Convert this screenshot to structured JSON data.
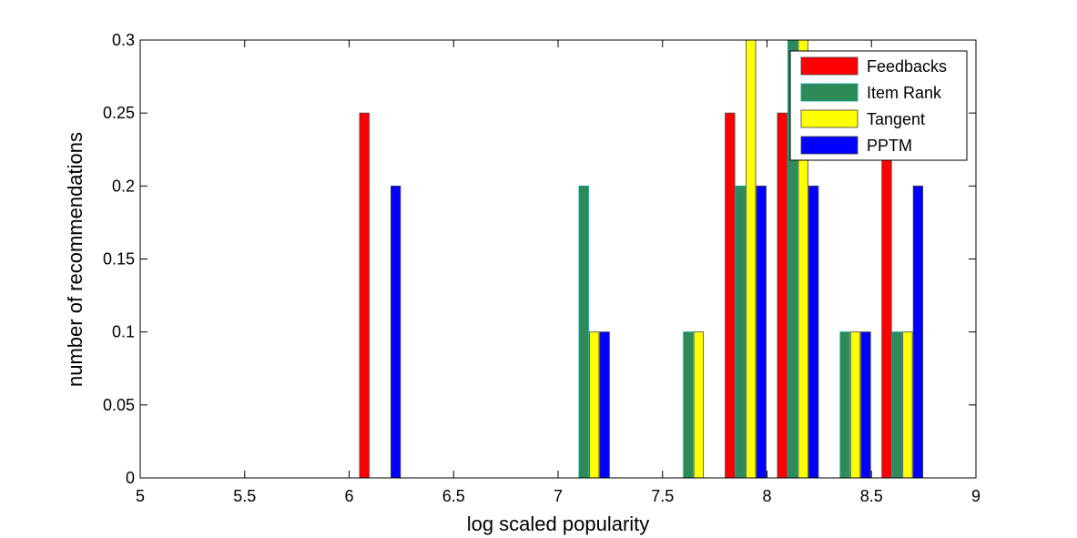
{
  "chart_data": {
    "type": "bar",
    "title": "",
    "xlabel": "log scaled popularity",
    "ylabel": "number of recommendations",
    "xlim": [
      5,
      9
    ],
    "ylim": [
      0,
      0.3
    ],
    "grid": false,
    "legend_position": "top-right",
    "x_ticks": [
      5,
      5.5,
      6,
      6.5,
      7,
      7.5,
      8,
      8.5,
      9
    ],
    "x_tick_labels": [
      "5",
      "5.5",
      "6",
      "6.5",
      "7",
      "7.5",
      "8",
      "8.5",
      "9"
    ],
    "y_ticks": [
      0,
      0.05,
      0.1,
      0.15,
      0.2,
      0.25,
      0.3
    ],
    "y_tick_labels": [
      "0",
      "0.05",
      "0.1",
      "0.15",
      "0.2",
      "0.25",
      "0.3"
    ],
    "bin_centers": [
      5.15,
      5.4,
      5.65,
      5.9,
      6.15,
      6.4,
      6.65,
      6.9,
      7.15,
      7.4,
      7.65,
      7.9,
      8.15,
      8.4,
      8.65,
      8.9
    ],
    "series": [
      {
        "name": "Feedbacks",
        "color": "#ff0000",
        "values": [
          0,
          0,
          0,
          0,
          0.25,
          0,
          0,
          0,
          0,
          0,
          0,
          0.25,
          0.25,
          0,
          0.25,
          0
        ]
      },
      {
        "name": "Item Rank",
        "color": "#2e8b57",
        "values": [
          0,
          0,
          0,
          0,
          0,
          0,
          0,
          0,
          0.2,
          0,
          0.1,
          0.2,
          0.3,
          0.1,
          0.1,
          0
        ]
      },
      {
        "name": "Tangent",
        "color": "#ffff00",
        "values": [
          0,
          0,
          0,
          0,
          0,
          0,
          0,
          0,
          0.1,
          0,
          0.1,
          0.3,
          0.3,
          0.1,
          0.1,
          0
        ]
      },
      {
        "name": "PPTM",
        "color": "#0000ff",
        "values": [
          0,
          0,
          0,
          0,
          0.2,
          0,
          0,
          0,
          0.1,
          0,
          0,
          0.2,
          0.2,
          0.1,
          0.2,
          0
        ]
      }
    ]
  }
}
